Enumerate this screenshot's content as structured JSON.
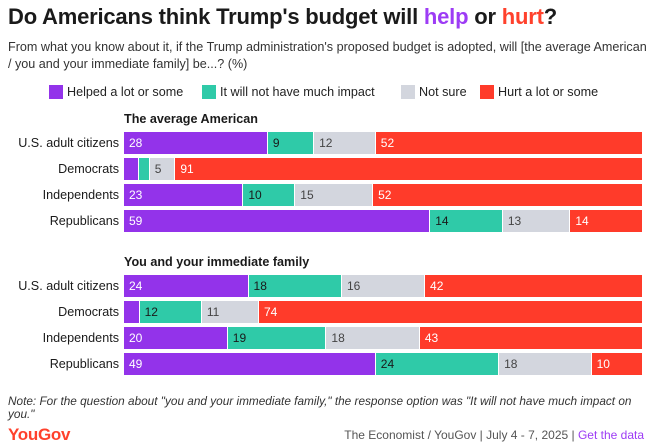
{
  "title": {
    "prefix": "Do Americans think Trump's budget will ",
    "help": "help",
    "mid": " or ",
    "hurt": "hurt",
    "suffix": "?"
  },
  "subtitle": "From what you know about it, if the Trump administration's proposed budget is adopted, will [the average American / you and your immediate family] be...? (%)",
  "colors": {
    "helped": "#9333ea",
    "not_much": "#2fcaa8",
    "not_sure": "#d3d6de",
    "hurt": "#ff3b2a",
    "help_word": "#9d3cf5",
    "hurt_word": "#ff412c"
  },
  "note": "Note: For the question about \"you and your immediate family,\" the response option was \"It will not have much impact on you.\"",
  "footer": {
    "logo": "YouGov",
    "source": "The Economist / YouGov | July 4 - 7, 2025 | ",
    "link": "Get the data"
  },
  "chart_data": {
    "type": "bar",
    "stacked": true,
    "orientation": "horizontal",
    "xlim": [
      0,
      100
    ],
    "legend_position": "top",
    "series": [
      {
        "name": "Helped a lot or some",
        "key": "helped"
      },
      {
        "name": "It will not have much impact",
        "key": "not_much"
      },
      {
        "name": "Not sure",
        "key": "not_sure"
      },
      {
        "name": "Hurt a lot or some",
        "key": "hurt"
      }
    ],
    "panels": [
      {
        "title": "The average American",
        "categories": [
          "U.S. adult citizens",
          "Democrats",
          "Independents",
          "Republicans"
        ],
        "values": [
          {
            "helped": 28,
            "not_much": 9,
            "not_sure": 12,
            "hurt": 52
          },
          {
            "helped": 3,
            "not_much": 2,
            "not_sure": 5,
            "hurt": 91
          },
          {
            "helped": 23,
            "not_much": 10,
            "not_sure": 15,
            "hurt": 52
          },
          {
            "helped": 59,
            "not_much": 14,
            "not_sure": 13,
            "hurt": 14
          }
        ],
        "labels": [
          {
            "helped": "28",
            "not_much": "9",
            "not_sure": "12",
            "hurt": "52"
          },
          {
            "helped": "",
            "not_much": "",
            "not_sure": "5",
            "hurt": "91"
          },
          {
            "helped": "23",
            "not_much": "10",
            "not_sure": "15",
            "hurt": "52"
          },
          {
            "helped": "59",
            "not_much": "14",
            "not_sure": "13",
            "hurt": "14"
          }
        ]
      },
      {
        "title": "You and your immediate family",
        "categories": [
          "U.S. adult citizens",
          "Democrats",
          "Independents",
          "Republicans"
        ],
        "values": [
          {
            "helped": 24,
            "not_much": 18,
            "not_sure": 16,
            "hurt": 42
          },
          {
            "helped": 3,
            "not_much": 12,
            "not_sure": 11,
            "hurt": 74
          },
          {
            "helped": 20,
            "not_much": 19,
            "not_sure": 18,
            "hurt": 43
          },
          {
            "helped": 49,
            "not_much": 24,
            "not_sure": 18,
            "hurt": 10
          }
        ],
        "labels": [
          {
            "helped": "24",
            "not_much": "18",
            "not_sure": "16",
            "hurt": "42"
          },
          {
            "helped": "",
            "not_much": "12",
            "not_sure": "11",
            "hurt": "74"
          },
          {
            "helped": "20",
            "not_much": "19",
            "not_sure": "18",
            "hurt": "43"
          },
          {
            "helped": "49",
            "not_much": "24",
            "not_sure": "18",
            "hurt": "10"
          }
        ]
      }
    ]
  }
}
